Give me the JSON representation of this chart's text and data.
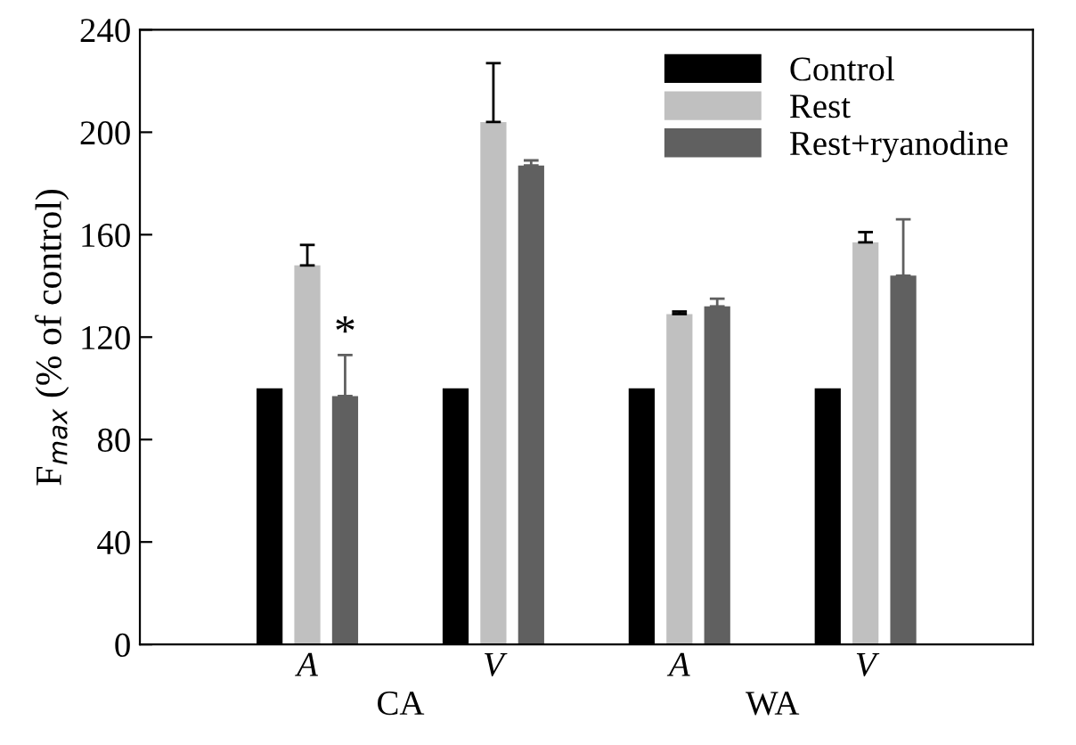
{
  "chart_data": {
    "type": "bar",
    "ylabel": "F$_{max}$ (% of control)",
    "categories": [
      "A",
      "V",
      "A",
      "V"
    ],
    "series": [
      {
        "name": "Control",
        "color": "#000000",
        "values": [
          100,
          100,
          100,
          100
        ]
      },
      {
        "name": "Rest",
        "color": "#c0c0c0",
        "values": [
          148,
          204,
          129,
          157
        ],
        "errors": [
          [
            148,
            156
          ],
          [
            204,
            227
          ],
          [
            129,
            130
          ],
          [
            157,
            161
          ]
        ]
      },
      {
        "name": "Rest+ryanodine",
        "color": "#606060",
        "values": [
          97,
          187,
          132,
          144
        ],
        "errors": [
          [
            97,
            113
          ],
          [
            187,
            189
          ],
          [
            132,
            135
          ],
          [
            144,
            166
          ]
        ]
      }
    ],
    "ylim": [
      0,
      240
    ],
    "yticks": [
      0,
      40,
      80,
      120,
      160,
      200,
      240
    ],
    "annotations": [
      "*",
      "CA",
      "WA"
    ],
    "legend": "top right",
    "grid": false
  }
}
